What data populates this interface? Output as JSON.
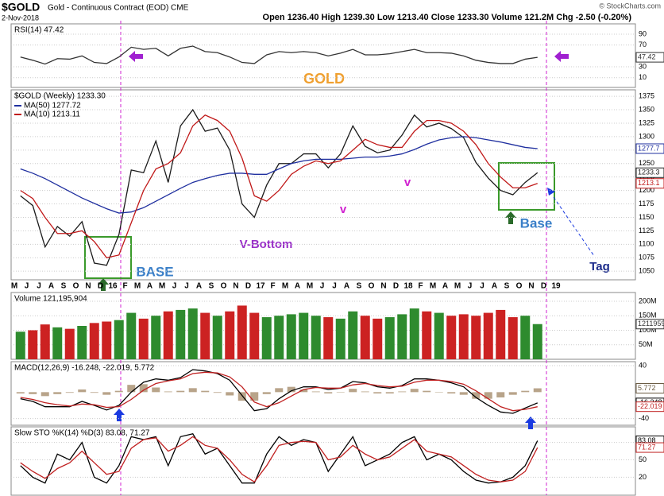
{
  "header": {
    "symbol": "$GOLD",
    "name": "Gold - Continuous Contract (EOD) CME",
    "date": "2-Nov-2018",
    "source": "© StockCharts.com",
    "ohlc": "Open 1236.40  High 1239.30  Low 1213.40  Close 1233.30  Volume 121.2M  Chg -2.50 (-0.20%)"
  },
  "annotations": {
    "gold": "GOLD",
    "v_bottom": "V-Bottom",
    "v1": "v",
    "v2": "v",
    "base_left": "BASE",
    "base_right": "Base",
    "tag": "Tag"
  },
  "chart_data": [
    {
      "type": "line",
      "legend": "$GOLD (Weekly) 1233.30",
      "xtick_labels": [
        "M",
        "J",
        "J",
        "A",
        "S",
        "O",
        "N",
        "D",
        "16",
        "F",
        "M",
        "A",
        "M",
        "J",
        "J",
        "A",
        "S",
        "O",
        "N",
        "D",
        "17",
        "F",
        "M",
        "A",
        "M",
        "J",
        "J",
        "A",
        "S",
        "O",
        "N",
        "D",
        "18",
        "F",
        "M",
        "A",
        "M",
        "J",
        "J",
        "A",
        "S",
        "O",
        "N",
        "D",
        "19"
      ],
      "ylim": [
        1034,
        1387
      ],
      "yticks": [
        1050,
        1075,
        1100,
        1125,
        1150,
        1175,
        1200,
        1225,
        1250,
        1275,
        1300,
        1325,
        1350,
        1375
      ],
      "grid": true,
      "series": [
        {
          "name": "Close",
          "color": "#1a1a1a",
          "last_label": "1233.3",
          "values": [
            1190,
            1172,
            1095,
            1133,
            1115,
            1142,
            1065,
            1061,
            1118,
            1238,
            1233,
            1292,
            1215,
            1320,
            1350,
            1310,
            1316,
            1275,
            1175,
            1150,
            1210,
            1250,
            1250,
            1268,
            1268,
            1242,
            1268,
            1320,
            1282,
            1270,
            1275,
            1303,
            1340,
            1318,
            1325,
            1315,
            1298,
            1252,
            1223,
            1200,
            1192,
            1215,
            1233
          ]
        },
        {
          "name": "MA(50) 1277.72",
          "color": "#1f2f9f",
          "last_label": "1277.7",
          "values": [
            1240,
            1232,
            1222,
            1210,
            1198,
            1186,
            1176,
            1166,
            1158,
            1160,
            1168,
            1180,
            1192,
            1204,
            1215,
            1222,
            1228,
            1232,
            1232,
            1230,
            1230,
            1240,
            1250,
            1255,
            1258,
            1258,
            1258,
            1260,
            1262,
            1262,
            1264,
            1268,
            1276,
            1286,
            1294,
            1298,
            1300,
            1298,
            1294,
            1290,
            1285,
            1280,
            1277.72
          ]
        },
        {
          "name": "MA(10) 1213.11",
          "color": "#c01818",
          "last_label": "1213.1",
          "values": [
            1200,
            1185,
            1150,
            1120,
            1120,
            1125,
            1105,
            1075,
            1080,
            1140,
            1200,
            1240,
            1250,
            1270,
            1320,
            1340,
            1330,
            1310,
            1260,
            1190,
            1180,
            1200,
            1230,
            1245,
            1255,
            1250,
            1255,
            1275,
            1295,
            1285,
            1280,
            1280,
            1310,
            1330,
            1330,
            1325,
            1310,
            1285,
            1250,
            1225,
            1205,
            1205,
            1213.11
          ]
        }
      ]
    },
    {
      "type": "line",
      "legend": "RSI(14) 47.42",
      "ylim": [
        -8,
        109
      ],
      "yticks": [
        10,
        30,
        70,
        90
      ],
      "grid": true,
      "series": [
        {
          "name": "RSI",
          "color": "#333333",
          "last_label": "47.42",
          "values": [
            48,
            42,
            35,
            45,
            44,
            50,
            38,
            36,
            48,
            66,
            62,
            64,
            50,
            64,
            68,
            58,
            56,
            48,
            38,
            36,
            52,
            58,
            56,
            58,
            56,
            50,
            55,
            62,
            52,
            52,
            54,
            58,
            62,
            56,
            56,
            55,
            50,
            42,
            38,
            36,
            36,
            44,
            47.42
          ]
        }
      ]
    },
    {
      "type": "bar",
      "legend": "Volume 121,195,904",
      "ylim": [
        0,
        230000000
      ],
      "yticks": [
        {
          "value": 50000000,
          "label": "50M"
        },
        {
          "value": 100000000,
          "label": "100M"
        },
        {
          "value": 150000000,
          "label": "150M"
        },
        {
          "value": 200000000,
          "label": "200M"
        }
      ],
      "grid": true,
      "up_color": "#2e8b2e",
      "down_color": "#cc2222",
      "last_label": "121195904",
      "values": [
        95000000,
        100000000,
        120000000,
        110000000,
        105000000,
        115000000,
        125000000,
        130000000,
        135000000,
        160000000,
        140000000,
        150000000,
        165000000,
        170000000,
        175000000,
        160000000,
        150000000,
        165000000,
        185000000,
        160000000,
        145000000,
        150000000,
        155000000,
        160000000,
        150000000,
        145000000,
        140000000,
        165000000,
        150000000,
        140000000,
        145000000,
        155000000,
        175000000,
        165000000,
        160000000,
        150000000,
        155000000,
        150000000,
        160000000,
        170000000,
        145000000,
        150000000,
        121195904
      ]
    },
    {
      "type": "combo",
      "legend": "MACD(12,26,9) -16.248, -22.019, 5.772",
      "ylim": [
        -50,
        46
      ],
      "yticks": [
        -40,
        40
      ],
      "grid": true,
      "series": [
        {
          "name": "Histogram",
          "style": "bar",
          "color": "#b8a48a",
          "last_label": "5.772",
          "values": [
            -2,
            -3,
            -6,
            -3,
            -1,
            4,
            -1,
            -4,
            2,
            11,
            12,
            7,
            1,
            2,
            6,
            2,
            -1,
            -5,
            -13,
            -13,
            -3,
            6,
            8,
            4,
            1,
            -2,
            0,
            5,
            1,
            -2,
            -2,
            1,
            5,
            2,
            0,
            -2,
            -4,
            -10,
            -10,
            -8,
            -4,
            2,
            5.772
          ]
        },
        {
          "name": "MACD",
          "style": "line",
          "color": "#000000",
          "last_label": "-16.248",
          "values": [
            -10,
            -14,
            -22,
            -22,
            -22,
            -14,
            -20,
            -27,
            -20,
            0,
            15,
            20,
            18,
            22,
            34,
            32,
            28,
            18,
            -5,
            -28,
            -25,
            -10,
            2,
            8,
            8,
            4,
            6,
            16,
            14,
            8,
            6,
            10,
            20,
            20,
            18,
            14,
            8,
            -8,
            -20,
            -30,
            -32,
            -24,
            -16.248
          ]
        },
        {
          "name": "Signal",
          "style": "line",
          "color": "#c02020",
          "last_label": "-22.019",
          "values": [
            -8,
            -11,
            -16,
            -19,
            -21,
            -18,
            -19,
            -23,
            -22,
            -11,
            3,
            13,
            17,
            20,
            28,
            30,
            29,
            23,
            8,
            -15,
            -22,
            -16,
            -6,
            4,
            7,
            6,
            6,
            11,
            13,
            10,
            8,
            9,
            15,
            18,
            18,
            16,
            12,
            2,
            -10,
            -22,
            -28,
            -26,
            -22.019
          ]
        }
      ]
    },
    {
      "type": "line",
      "legend": "Slow STO %K(14) %D(3) 83.08, 71.27",
      "ylim": [
        -11,
        107
      ],
      "yticks": [
        20,
        50,
        80
      ],
      "grid": true,
      "series": [
        {
          "name": "%K",
          "color": "#000000",
          "last_label": "83.08",
          "values": [
            40,
            20,
            10,
            60,
            50,
            80,
            20,
            10,
            40,
            90,
            85,
            90,
            40,
            90,
            95,
            60,
            70,
            40,
            10,
            10,
            60,
            90,
            75,
            85,
            80,
            30,
            60,
            90,
            40,
            50,
            60,
            80,
            90,
            50,
            60,
            50,
            30,
            15,
            10,
            12,
            20,
            40,
            83.08
          ]
        },
        {
          "name": "%D",
          "color": "#c02020",
          "last_label": "71.27",
          "values": [
            45,
            30,
            18,
            35,
            45,
            65,
            45,
            25,
            30,
            70,
            85,
            88,
            65,
            75,
            90,
            75,
            70,
            50,
            25,
            12,
            40,
            75,
            80,
            82,
            80,
            50,
            55,
            75,
            60,
            50,
            55,
            70,
            85,
            65,
            60,
            55,
            40,
            25,
            15,
            12,
            15,
            30,
            71.27
          ]
        }
      ]
    }
  ]
}
